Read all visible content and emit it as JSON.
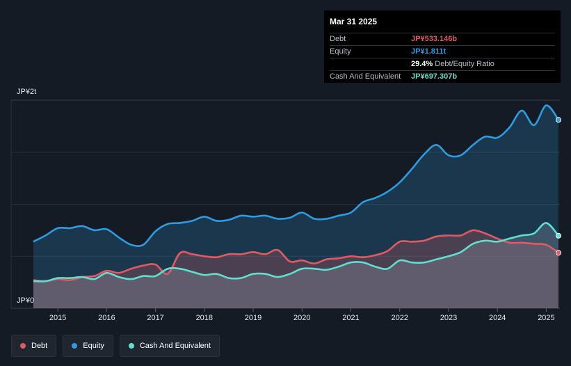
{
  "tooltip": {
    "date": "Mar 31 2025",
    "rows": [
      {
        "label": "Debt",
        "value": "JP¥533.146b",
        "color": "#e05a64"
      },
      {
        "label": "Equity",
        "value": "JP¥1.811t",
        "color": "#2f9be0"
      },
      {
        "label": "",
        "value": "29.4%",
        "extra": "Debt/Equity Ratio",
        "color": "#ffffff"
      },
      {
        "label": "Cash And Equivalent",
        "value": "JP¥697.307b",
        "color": "#5fe0cf"
      }
    ]
  },
  "legend": [
    {
      "label": "Debt",
      "color": "#e05a64"
    },
    {
      "label": "Equity",
      "color": "#2f9be0"
    },
    {
      "label": "Cash And Equivalent",
      "color": "#5fe0cf"
    }
  ],
  "chart_data": {
    "type": "area",
    "y_tick_labels": [
      "JP¥2t",
      "JP¥0"
    ],
    "ylim": [
      0,
      2000
    ],
    "y_unit": "JP¥ billions",
    "xlim": [
      2014.5,
      2025.25
    ],
    "x_ticks": [
      2015,
      2016,
      2017,
      2018,
      2019,
      2020,
      2021,
      2022,
      2023,
      2024,
      2025
    ],
    "x_tick_labels": [
      "2015",
      "2016",
      "2017",
      "2018",
      "2019",
      "2020",
      "2021",
      "2022",
      "2023",
      "2024",
      "2025"
    ],
    "grid": true,
    "series": [
      {
        "name": "Equity",
        "color": "#2f9be0",
        "x": [
          2014.5,
          2014.75,
          2015.0,
          2015.25,
          2015.5,
          2015.75,
          2016.0,
          2016.25,
          2016.5,
          2016.75,
          2017.0,
          2017.25,
          2017.5,
          2017.75,
          2018.0,
          2018.25,
          2018.5,
          2018.75,
          2019.0,
          2019.25,
          2019.5,
          2019.75,
          2020.0,
          2020.25,
          2020.5,
          2020.75,
          2021.0,
          2021.25,
          2021.5,
          2021.75,
          2022.0,
          2022.25,
          2022.5,
          2022.75,
          2023.0,
          2023.25,
          2023.5,
          2023.75,
          2024.0,
          2024.25,
          2024.5,
          2024.75,
          2025.0,
          2025.25
        ],
        "values": [
          640,
          700,
          770,
          770,
          790,
          750,
          760,
          680,
          610,
          610,
          740,
          810,
          820,
          840,
          880,
          840,
          850,
          890,
          880,
          890,
          860,
          870,
          920,
          860,
          860,
          890,
          920,
          1020,
          1060,
          1120,
          1210,
          1340,
          1480,
          1570,
          1470,
          1470,
          1570,
          1650,
          1640,
          1740,
          1900,
          1760,
          1950,
          1811
        ]
      },
      {
        "name": "Debt",
        "color": "#e05a64",
        "x": [
          2014.5,
          2014.75,
          2015.0,
          2015.25,
          2015.5,
          2015.75,
          2016.0,
          2016.25,
          2016.5,
          2016.75,
          2017.0,
          2017.25,
          2017.5,
          2017.75,
          2018.0,
          2018.25,
          2018.5,
          2018.75,
          2019.0,
          2019.25,
          2019.5,
          2019.75,
          2020.0,
          2020.25,
          2020.5,
          2020.75,
          2021.0,
          2021.25,
          2021.5,
          2021.75,
          2022.0,
          2022.25,
          2022.5,
          2022.75,
          2023.0,
          2023.25,
          2023.5,
          2023.75,
          2024.0,
          2024.25,
          2024.5,
          2024.75,
          2025.0,
          2025.25
        ],
        "values": [
          270,
          260,
          280,
          270,
          300,
          310,
          360,
          340,
          380,
          410,
          420,
          330,
          530,
          520,
          500,
          490,
          520,
          520,
          540,
          520,
          560,
          450,
          460,
          430,
          470,
          480,
          500,
          490,
          510,
          550,
          640,
          640,
          650,
          690,
          700,
          700,
          750,
          720,
          670,
          630,
          630,
          620,
          610,
          533
        ]
      },
      {
        "name": "Cash And Equivalent",
        "color": "#5fe0cf",
        "x": [
          2014.5,
          2014.75,
          2015.0,
          2015.25,
          2015.5,
          2015.75,
          2016.0,
          2016.25,
          2016.5,
          2016.75,
          2017.0,
          2017.25,
          2017.5,
          2017.75,
          2018.0,
          2018.25,
          2018.5,
          2018.75,
          2019.0,
          2019.25,
          2019.5,
          2019.75,
          2020.0,
          2020.25,
          2020.5,
          2020.75,
          2021.0,
          2021.25,
          2021.5,
          2021.75,
          2022.0,
          2022.25,
          2022.5,
          2022.75,
          2023.0,
          2023.25,
          2023.5,
          2023.75,
          2024.0,
          2024.25,
          2024.5,
          2024.75,
          2025.0,
          2025.25
        ],
        "values": [
          260,
          260,
          290,
          290,
          300,
          280,
          340,
          300,
          280,
          310,
          310,
          380,
          380,
          350,
          320,
          330,
          290,
          290,
          330,
          330,
          300,
          330,
          380,
          380,
          370,
          400,
          440,
          440,
          400,
          380,
          460,
          440,
          440,
          470,
          500,
          540,
          620,
          650,
          640,
          670,
          700,
          720,
          820,
          697
        ]
      }
    ]
  }
}
